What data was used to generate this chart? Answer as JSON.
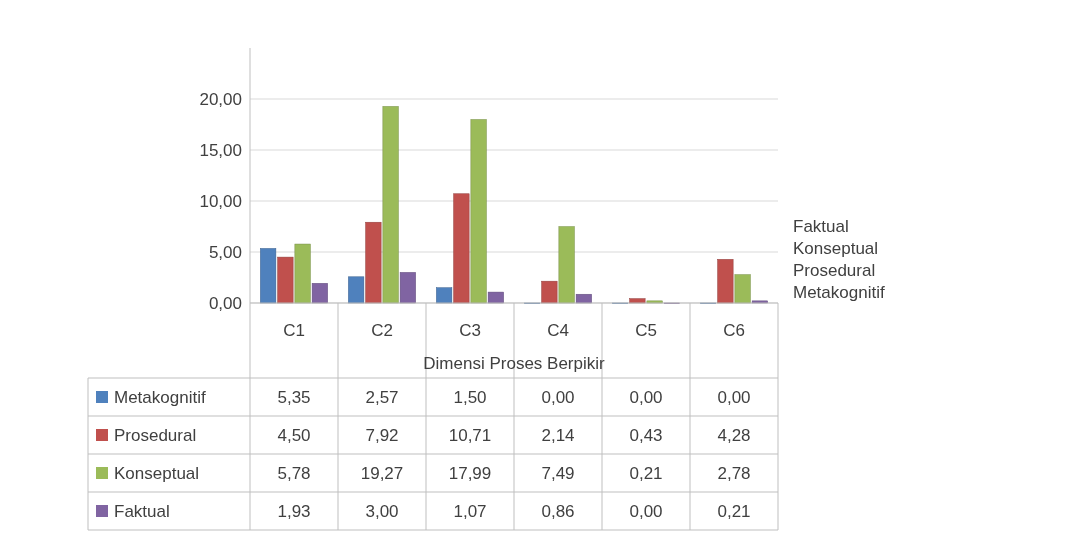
{
  "chart_data": {
    "type": "bar",
    "xlabel": "Dimensi Proses Berpikir",
    "categories": [
      "C1",
      "C2",
      "C3",
      "C4",
      "C5",
      "C6"
    ],
    "ylim": [
      0,
      25
    ],
    "yticks": [
      {
        "value": 0,
        "label": "0,00"
      },
      {
        "value": 5,
        "label": "5,00"
      },
      {
        "value": 10,
        "label": "10,00"
      },
      {
        "value": 15,
        "label": "15,00"
      },
      {
        "value": 20,
        "label": "20,00"
      }
    ],
    "grid": "y",
    "legend": "bottom",
    "series": [
      {
        "name": "Metakognitif",
        "color": "#4f81bd",
        "values": [
          5.35,
          2.57,
          1.5,
          0,
          0,
          0
        ],
        "value_labels": [
          "5,35",
          "2,57",
          "1,50",
          "0,00",
          "0,00",
          "0,00"
        ]
      },
      {
        "name": "Prosedural",
        "color": "#c0504d",
        "values": [
          4.5,
          7.92,
          10.71,
          2.14,
          0.43,
          4.28
        ],
        "value_labels": [
          "4,50",
          "7,92",
          "10,71",
          "2,14",
          "0,43",
          "4,28"
        ]
      },
      {
        "name": "Konseptual",
        "color": "#9bbb59",
        "values": [
          5.78,
          19.27,
          17.99,
          7.49,
          0.21,
          2.78
        ],
        "value_labels": [
          "5,78",
          "19,27",
          "17,99",
          "7,49",
          "0,21",
          "2,78"
        ]
      },
      {
        "name": "Faktual",
        "color": "#8064a2",
        "values": [
          1.93,
          3,
          1.07,
          0.86,
          0,
          0.21
        ],
        "value_labels": [
          "1,93",
          "3,00",
          "1,07",
          "0,86",
          "0,00",
          "0,21"
        ]
      }
    ]
  }
}
